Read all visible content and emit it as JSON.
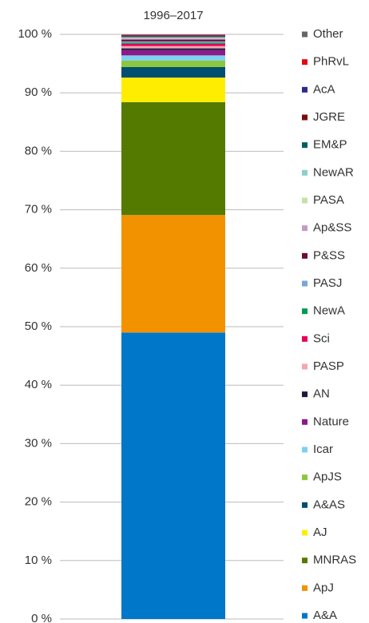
{
  "chart_data": {
    "type": "stacked_bar",
    "categories": [
      "1996–2017"
    ],
    "ylim": [
      0,
      100
    ],
    "yticks": [
      {
        "value": 0,
        "label": "0 %"
      },
      {
        "value": 10,
        "label": "10 %"
      },
      {
        "value": 20,
        "label": "20 %"
      },
      {
        "value": 30,
        "label": "30 %"
      },
      {
        "value": 40,
        "label": "40 %"
      },
      {
        "value": 50,
        "label": "50 %"
      },
      {
        "value": 60,
        "label": "60 %"
      },
      {
        "value": 70,
        "label": "70 %"
      },
      {
        "value": 80,
        "label": "80 %"
      },
      {
        "value": 90,
        "label": "90 %"
      },
      {
        "value": 100,
        "label": "100 %"
      }
    ],
    "grid": true,
    "legend": "right",
    "series": [
      {
        "name": "A&A",
        "color": "#0077c8",
        "values": [
          49.0
        ]
      },
      {
        "name": "ApJ",
        "color": "#f39200",
        "values": [
          20.1
        ]
      },
      {
        "name": "MNRAS",
        "color": "#557a00",
        "values": [
          19.3
        ]
      },
      {
        "name": "AJ",
        "color": "#ffed00",
        "values": [
          4.2
        ]
      },
      {
        "name": "A&AS",
        "color": "#004f71",
        "values": [
          1.8
        ]
      },
      {
        "name": "ApJS",
        "color": "#8dc63f",
        "values": [
          1.1
        ]
      },
      {
        "name": "Icar",
        "color": "#7fd0f0",
        "values": [
          0.9
        ]
      },
      {
        "name": "Nature",
        "color": "#8b1a89",
        "values": [
          0.9
        ]
      },
      {
        "name": "AN",
        "color": "#1a1a40",
        "values": [
          0.3
        ]
      },
      {
        "name": "PASP",
        "color": "#f4a6b0",
        "values": [
          0.4
        ]
      },
      {
        "name": "Sci",
        "color": "#e5005a",
        "values": [
          0.4
        ]
      },
      {
        "name": "NewA",
        "color": "#009a50",
        "values": [
          0.2
        ]
      },
      {
        "name": "PASJ",
        "color": "#7aa6d6",
        "values": [
          0.2
        ]
      },
      {
        "name": "P&SS",
        "color": "#6d0b3a",
        "values": [
          0.3
        ]
      },
      {
        "name": "Ap&SS",
        "color": "#c49ac8",
        "values": [
          0.2
        ]
      },
      {
        "name": "PASA",
        "color": "#c6e0a8",
        "values": [
          0.1
        ]
      },
      {
        "name": "NewAR",
        "color": "#8ccfc9",
        "values": [
          0.1
        ]
      },
      {
        "name": "EM&P",
        "color": "#005f5f",
        "values": [
          0.1
        ]
      },
      {
        "name": "JGRE",
        "color": "#7a0c0c",
        "values": [
          0.1
        ]
      },
      {
        "name": "AcA",
        "color": "#2b2b8c",
        "values": [
          0.1
        ]
      },
      {
        "name": "PhRvL",
        "color": "#e30613",
        "values": [
          0.1
        ]
      },
      {
        "name": "Other",
        "color": "#666666",
        "values": [
          0.1
        ]
      }
    ]
  }
}
